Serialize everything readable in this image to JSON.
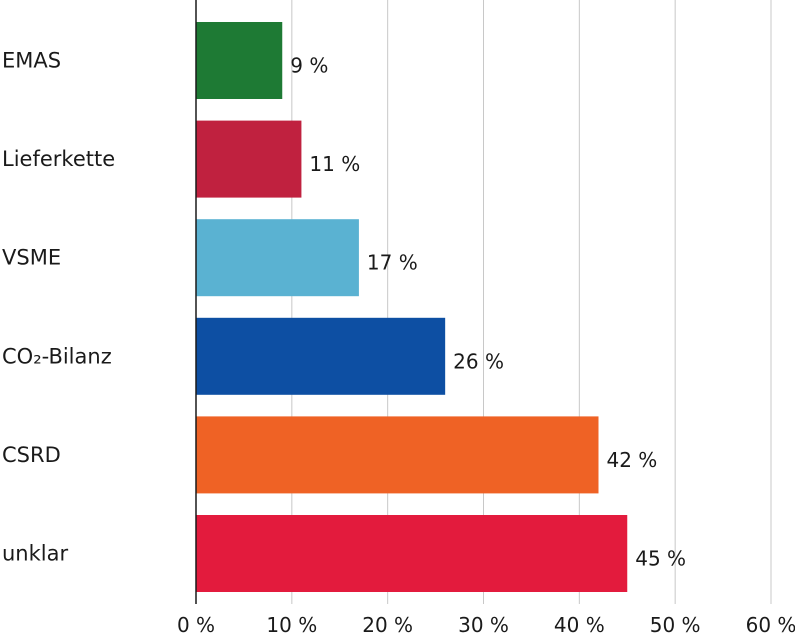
{
  "chart_data": {
    "type": "bar",
    "orientation": "horizontal",
    "categories": [
      "EMAS",
      "Lieferkette",
      "VSME",
      "CO₂-Bilanz",
      "CSRD",
      "unklar"
    ],
    "values": [
      9,
      11,
      17,
      26,
      42,
      45
    ],
    "value_labels": [
      "9 %",
      "11 %",
      "17 %",
      "26 %",
      "42 %",
      "45 %"
    ],
    "colors": [
      "#1e7a34",
      "#c0213f",
      "#5ab2d2",
      "#0d4fa3",
      "#ef6225",
      "#e31b3d"
    ],
    "xlim": [
      0,
      60
    ],
    "xticks": [
      0,
      10,
      20,
      30,
      40,
      50,
      60
    ],
    "xtick_labels": [
      "0 %",
      "10 %",
      "20 %",
      "30 %",
      "40 %",
      "50 %",
      "60 %"
    ],
    "grid": true,
    "title": "",
    "xlabel": "",
    "ylabel": ""
  }
}
